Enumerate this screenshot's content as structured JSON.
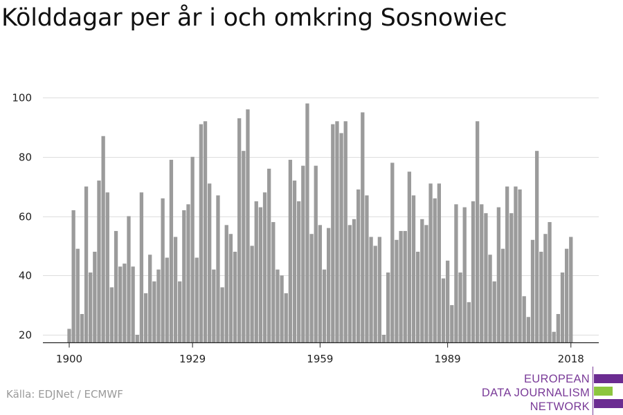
{
  "title": "Kölddagar per år i och omkring Sosnowiec",
  "source": "Källa: EDJNet / ECMWF",
  "logo": {
    "lines": [
      "EUROPEAN",
      "DATA JOURNALISM",
      "NETWORK"
    ],
    "colors": {
      "text": "#7a3b98",
      "bar_purple": "#6b2c91",
      "bar_green": "#8cc63f"
    }
  },
  "colors": {
    "bars": "#9b9b9b",
    "grid": "#dddddd",
    "axis": "#222222"
  },
  "chart_data": {
    "type": "bar",
    "title": "Kölddagar per år i och omkring Sosnowiec",
    "xlabel": "",
    "ylabel": "",
    "ylim": [
      20,
      100
    ],
    "yticks": [
      20,
      40,
      60,
      80,
      100
    ],
    "xticks": [
      1900,
      1929,
      1959,
      1989,
      2018
    ],
    "grid": true,
    "x": [
      1900,
      1901,
      1902,
      1903,
      1904,
      1905,
      1906,
      1907,
      1908,
      1909,
      1910,
      1911,
      1912,
      1913,
      1914,
      1915,
      1916,
      1917,
      1918,
      1919,
      1920,
      1921,
      1922,
      1923,
      1924,
      1925,
      1926,
      1927,
      1928,
      1929,
      1930,
      1931,
      1932,
      1933,
      1934,
      1935,
      1936,
      1937,
      1938,
      1939,
      1940,
      1941,
      1942,
      1943,
      1944,
      1945,
      1946,
      1947,
      1948,
      1949,
      1950,
      1951,
      1952,
      1953,
      1954,
      1955,
      1956,
      1957,
      1958,
      1959,
      1960,
      1961,
      1962,
      1963,
      1964,
      1965,
      1966,
      1967,
      1968,
      1969,
      1970,
      1971,
      1972,
      1973,
      1974,
      1975,
      1976,
      1977,
      1978,
      1979,
      1980,
      1981,
      1982,
      1983,
      1984,
      1985,
      1986,
      1987,
      1988,
      1989,
      1990,
      1991,
      1992,
      1993,
      1994,
      1995,
      1996,
      1997,
      1998,
      1999,
      2000,
      2001,
      2002,
      2003,
      2004,
      2005,
      2006,
      2007,
      2008,
      2009,
      2010,
      2011,
      2012,
      2013,
      2014,
      2015,
      2016,
      2017,
      2018
    ],
    "values": [
      22,
      62,
      49,
      27,
      70,
      41,
      48,
      72,
      87,
      68,
      36,
      55,
      43,
      44,
      60,
      43,
      20,
      68,
      34,
      47,
      38,
      42,
      66,
      46,
      79,
      53,
      38,
      62,
      64,
      80,
      46,
      91,
      92,
      71,
      42,
      67,
      36,
      57,
      54,
      48,
      93,
      82,
      96,
      50,
      65,
      63,
      68,
      76,
      58,
      42,
      40,
      34,
      79,
      72,
      65,
      77,
      98,
      54,
      77,
      57,
      42,
      56,
      91,
      92,
      88,
      92,
      57,
      59,
      69,
      95,
      67,
      53,
      50,
      53,
      20,
      41,
      78,
      52,
      55,
      55,
      75,
      67,
      48,
      59,
      57,
      71,
      66,
      71,
      39,
      45,
      30,
      64,
      41,
      63,
      31,
      65,
      92,
      64,
      61,
      47,
      38,
      63,
      49,
      70,
      61,
      70,
      69,
      33,
      26,
      52,
      82,
      48,
      54,
      58,
      21,
      27,
      41,
      49,
      53
    ]
  }
}
